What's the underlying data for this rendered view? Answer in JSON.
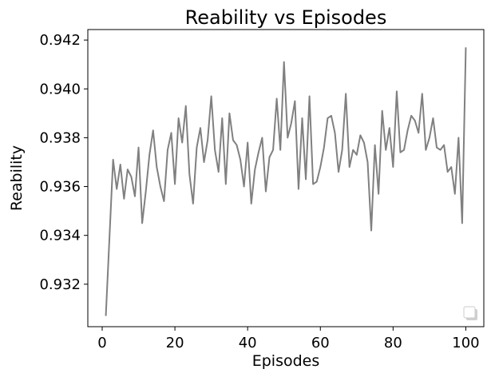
{
  "chart_data": {
    "type": "line",
    "title": "Reability vs Episodes",
    "xlabel": "Episodes",
    "ylabel": "Reability",
    "xlim": [
      -3.95,
      104.95
    ],
    "ylim": [
      0.93026,
      0.94243
    ],
    "xticks": [
      0,
      20,
      40,
      60,
      80,
      100
    ],
    "xtick_labels": [
      "0",
      "20",
      "40",
      "60",
      "80",
      "100"
    ],
    "yticks": [
      0.932,
      0.934,
      0.936,
      0.938,
      0.94,
      0.942
    ],
    "ytick_labels": [
      "0.932",
      "0.934",
      "0.936",
      "0.938",
      "0.940",
      "0.942"
    ],
    "grid": false,
    "legend": "lower-right, empty",
    "series": [
      {
        "color": "#808080",
        "x": [
          1,
          2,
          3,
          4,
          5,
          6,
          7,
          8,
          9,
          10,
          11,
          12,
          13,
          14,
          15,
          16,
          17,
          18,
          19,
          20,
          21,
          22,
          23,
          24,
          25,
          26,
          27,
          28,
          29,
          30,
          31,
          32,
          33,
          34,
          35,
          36,
          37,
          38,
          39,
          40,
          41,
          42,
          43,
          44,
          45,
          46,
          47,
          48,
          49,
          50,
          51,
          52,
          53,
          54,
          55,
          56,
          57,
          58,
          59,
          60,
          61,
          62,
          63,
          64,
          65,
          66,
          67,
          68,
          69,
          70,
          71,
          72,
          73,
          74,
          75,
          76,
          77,
          78,
          79,
          80,
          81,
          82,
          83,
          84,
          85,
          86,
          87,
          88,
          89,
          90,
          91,
          92,
          93,
          94,
          95,
          96,
          97,
          98,
          99,
          100
        ],
        "y": [
          0.9307,
          0.9339,
          0.9371,
          0.9359,
          0.9369,
          0.9355,
          0.9367,
          0.9364,
          0.9356,
          0.9376,
          0.9345,
          0.9358,
          0.9373,
          0.9383,
          0.9368,
          0.936,
          0.9354,
          0.9375,
          0.9382,
          0.9361,
          0.9388,
          0.9378,
          0.9393,
          0.9365,
          0.9353,
          0.9376,
          0.9384,
          0.937,
          0.9379,
          0.9397,
          0.9375,
          0.9366,
          0.9388,
          0.9361,
          0.939,
          0.9379,
          0.9377,
          0.9371,
          0.936,
          0.9378,
          0.9353,
          0.9367,
          0.9374,
          0.938,
          0.9358,
          0.9372,
          0.9375,
          0.9396,
          0.9375,
          0.9411,
          0.938,
          0.9386,
          0.9395,
          0.9359,
          0.9388,
          0.9363,
          0.9397,
          0.9361,
          0.9362,
          0.9368,
          0.9376,
          0.9388,
          0.9389,
          0.9382,
          0.9366,
          0.9375,
          0.9398,
          0.9368,
          0.9375,
          0.9373,
          0.9381,
          0.9378,
          0.937,
          0.9342,
          0.9377,
          0.9357,
          0.9391,
          0.9375,
          0.9384,
          0.9368,
          0.9399,
          0.9374,
          0.9375,
          0.9383,
          0.9389,
          0.9387,
          0.9382,
          0.9398,
          0.9375,
          0.938,
          0.9388,
          0.9376,
          0.9375,
          0.9377,
          0.9366,
          0.9368,
          0.9357,
          0.938,
          0.9345,
          0.9417
        ]
      }
    ]
  }
}
